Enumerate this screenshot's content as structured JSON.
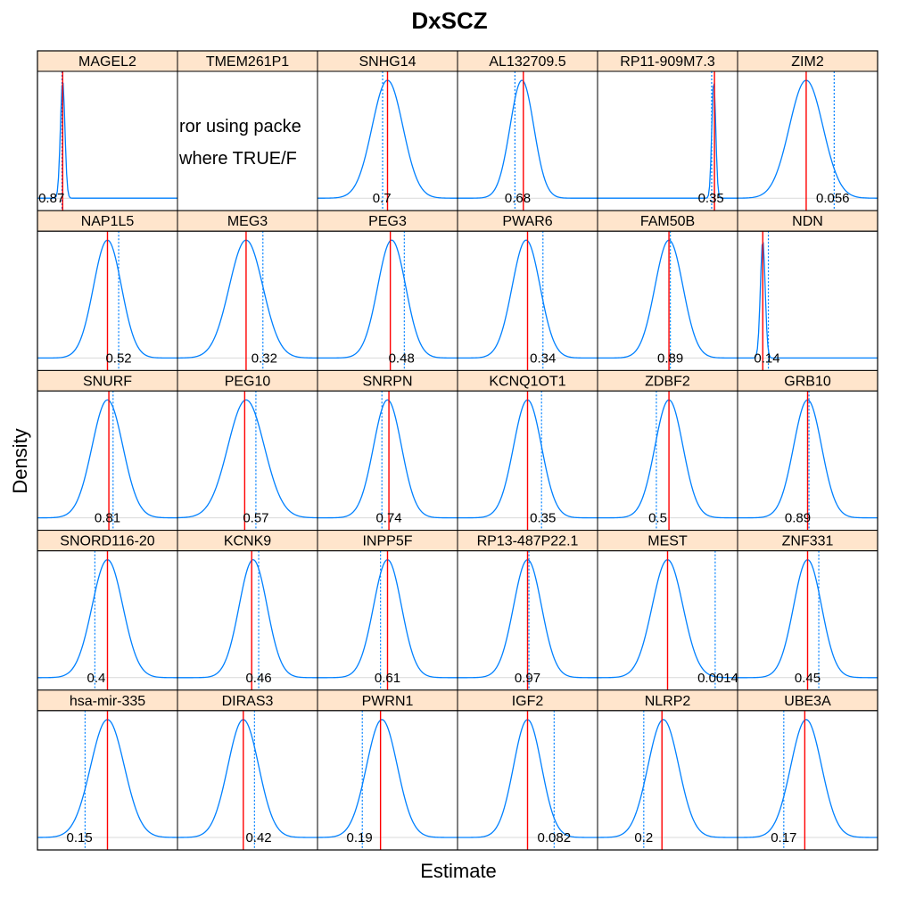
{
  "chart_data": {
    "type": "density",
    "title": "DxSCZ",
    "xlabel": "Estimate",
    "ylabel": "Density",
    "layout": {
      "columns": 6,
      "rows": 5
    },
    "colors": {
      "density": "#0080ff",
      "estimate": "#ff0000",
      "null": "#0080ff",
      "strip": "#ffe5cc",
      "baseline": "#d9d9d9"
    },
    "panels": [
      {
        "gene": "MAGEL2",
        "p": "0.87",
        "mode": 0.18,
        "sd": 0.016,
        "est": 0.18,
        "obs": 0.175,
        "label_x": 0.1
      },
      {
        "gene": "TMEM261P1",
        "error": true,
        "error_lines": [
          "ror using packe",
          "where TRUE/F"
        ]
      },
      {
        "gene": "SNHG14",
        "p": "0.7",
        "mode": 0.5,
        "sd": 0.11,
        "est": 0.5,
        "obs": 0.465,
        "label_x": 0.46
      },
      {
        "gene": "AL132709.5",
        "p": "0.68",
        "mode": 0.46,
        "sd": 0.085,
        "est": 0.47,
        "obs": 0.41,
        "label_x": 0.43
      },
      {
        "gene": "RP11-909M7.3",
        "p": "0.35",
        "mode": 0.83,
        "sd": 0.014,
        "est": 0.835,
        "obs": 0.815,
        "label_x": 0.81
      },
      {
        "gene": "ZIM2",
        "p": "0.056",
        "mode": 0.49,
        "sd": 0.12,
        "est": 0.49,
        "obs": 0.69,
        "label_x": 0.68
      },
      {
        "gene": "NAP1L5",
        "p": "0.52",
        "mode": 0.5,
        "sd": 0.1,
        "est": 0.5,
        "obs": 0.58,
        "label_x": 0.58
      },
      {
        "gene": "MEG3",
        "p": "0.32",
        "mode": 0.49,
        "sd": 0.12,
        "est": 0.49,
        "obs": 0.61,
        "label_x": 0.62
      },
      {
        "gene": "PEG3",
        "p": "0.48",
        "mode": 0.53,
        "sd": 0.1,
        "est": 0.52,
        "obs": 0.62,
        "label_x": 0.6
      },
      {
        "gene": "PWAR6",
        "p": "0.34",
        "mode": 0.49,
        "sd": 0.1,
        "est": 0.5,
        "obs": 0.61,
        "label_x": 0.61
      },
      {
        "gene": "FAM50B",
        "p": "0.89",
        "mode": 0.51,
        "sd": 0.1,
        "est": 0.51,
        "obs": 0.52,
        "label_x": 0.52
      },
      {
        "gene": "NDN",
        "p": "0.14",
        "mode": 0.18,
        "sd": 0.017,
        "est": 0.18,
        "obs": 0.22,
        "label_x": 0.21
      },
      {
        "gene": "SNURF",
        "p": "0.81",
        "mode": 0.5,
        "sd": 0.11,
        "est": 0.51,
        "obs": 0.54,
        "label_x": 0.5
      },
      {
        "gene": "PEG10",
        "p": "0.57",
        "mode": 0.49,
        "sd": 0.13,
        "est": 0.48,
        "obs": 0.56,
        "label_x": 0.56
      },
      {
        "gene": "SNRPN",
        "p": "0.74",
        "mode": 0.5,
        "sd": 0.1,
        "est": 0.51,
        "obs": 0.46,
        "label_x": 0.51
      },
      {
        "gene": "KCNQ1OT1",
        "p": "0.35",
        "mode": 0.5,
        "sd": 0.1,
        "est": 0.5,
        "obs": 0.6,
        "label_x": 0.61
      },
      {
        "gene": "ZDBF2",
        "p": "0.5",
        "mode": 0.51,
        "sd": 0.1,
        "est": 0.51,
        "obs": 0.42,
        "label_x": 0.43
      },
      {
        "gene": "GRB10",
        "p": "0.89",
        "mode": 0.5,
        "sd": 0.1,
        "est": 0.5,
        "obs": 0.51,
        "label_x": 0.43
      },
      {
        "gene": "SNORD116-20",
        "p": "0.4",
        "mode": 0.5,
        "sd": 0.11,
        "est": 0.5,
        "obs": 0.41,
        "label_x": 0.42
      },
      {
        "gene": "KCNK9",
        "p": "0.46",
        "mode": 0.54,
        "sd": 0.1,
        "est": 0.53,
        "obs": 0.58,
        "label_x": 0.58
      },
      {
        "gene": "INPP5F",
        "p": "0.61",
        "mode": 0.5,
        "sd": 0.1,
        "est": 0.5,
        "obs": 0.45,
        "label_x": 0.5
      },
      {
        "gene": "RP13-487P22.1",
        "p": "0.97",
        "mode": 0.5,
        "sd": 0.1,
        "est": 0.5,
        "obs": 0.51,
        "label_x": 0.5
      },
      {
        "gene": "MEST",
        "p": "0.0014",
        "mode": 0.5,
        "sd": 0.11,
        "est": 0.5,
        "obs": 0.84,
        "label_x": 0.86
      },
      {
        "gene": "ZNF331",
        "p": "0.45",
        "mode": 0.5,
        "sd": 0.1,
        "est": 0.5,
        "obs": 0.58,
        "label_x": 0.5
      },
      {
        "gene": "hsa-mir-335",
        "p": "0.15",
        "mode": 0.5,
        "sd": 0.12,
        "est": 0.5,
        "obs": 0.34,
        "label_x": 0.3
      },
      {
        "gene": "DIRAS3",
        "p": "0.42",
        "mode": 0.47,
        "sd": 0.11,
        "est": 0.47,
        "obs": 0.55,
        "label_x": 0.58
      },
      {
        "gene": "PWRN1",
        "p": "0.19",
        "mode": 0.46,
        "sd": 0.11,
        "est": 0.45,
        "obs": 0.32,
        "label_x": 0.3
      },
      {
        "gene": "IGF2",
        "p": "0.082",
        "mode": 0.5,
        "sd": 0.1,
        "est": 0.5,
        "obs": 0.69,
        "label_x": 0.69
      },
      {
        "gene": "NLRP2",
        "p": "0.2",
        "mode": 0.47,
        "sd": 0.11,
        "est": 0.46,
        "obs": 0.33,
        "label_x": 0.33
      },
      {
        "gene": "UBE3A",
        "p": "0.17",
        "mode": 0.49,
        "sd": 0.11,
        "est": 0.48,
        "obs": 0.33,
        "label_x": 0.33
      }
    ]
  }
}
